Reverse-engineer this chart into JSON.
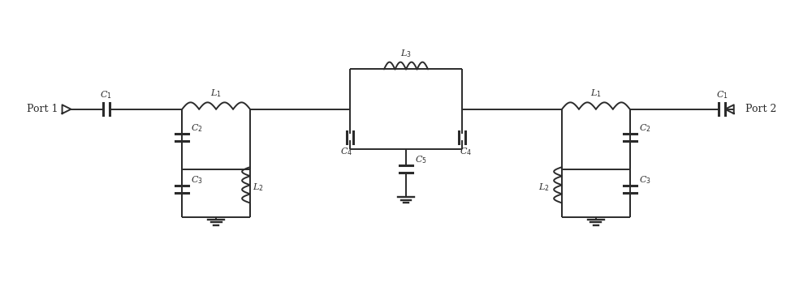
{
  "bg_color": "#ffffff",
  "line_color": "#2b2b2b",
  "line_width": 1.4,
  "figsize": [
    10.0,
    3.64
  ],
  "dpi": 100
}
